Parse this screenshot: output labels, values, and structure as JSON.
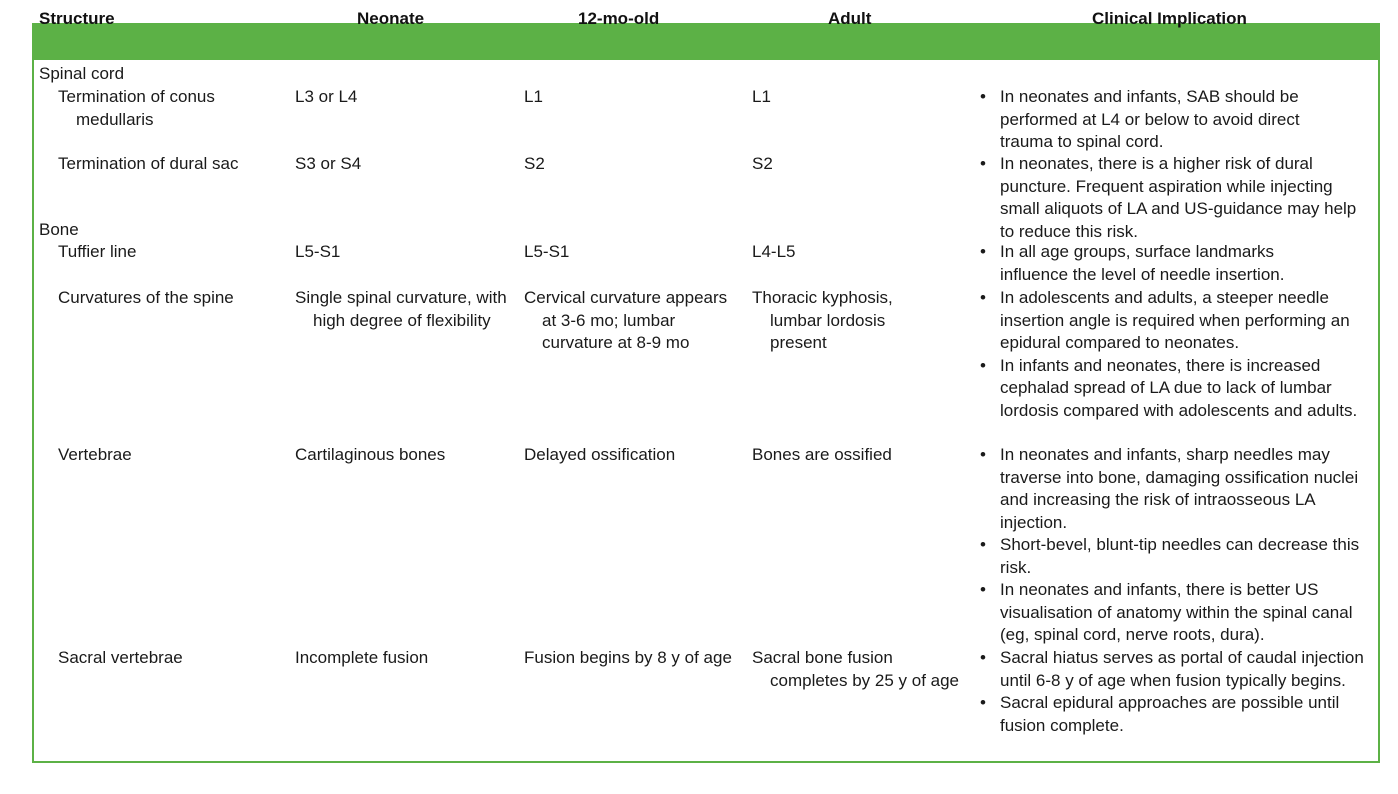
{
  "header": {
    "structure": "Structure",
    "neonate": "Neonate",
    "twelve_mo": "12-mo-old",
    "adult": "Adult",
    "clinical": "Clinical Implication"
  },
  "sections": {
    "spinal_cord": "Spinal cord",
    "bone": "Bone"
  },
  "rows": {
    "conus": {
      "structure": "Termination of conus medullaris",
      "neonate": "L3 or L4",
      "twelve_mo": "L1",
      "adult": "L1",
      "implications": [
        "In neonates and infants, SAB should be performed at L4 or below to avoid direct trauma to spinal cord."
      ]
    },
    "dural": {
      "structure": "Termination of dural sac",
      "neonate": "S3 or S4",
      "twelve_mo": "S2",
      "adult": "S2",
      "implications": [
        "In neonates, there is a higher risk of dural puncture. Frequent aspiration while injecting small aliquots of LA and US-guidance may help to reduce this risk."
      ]
    },
    "tuffier": {
      "structure": "Tuffier line",
      "neonate": "L5-S1",
      "twelve_mo": "L5-S1",
      "adult": "L4-L5",
      "implications": [
        "In all age groups, surface landmarks influence the level of needle insertion."
      ]
    },
    "curvatures": {
      "structure": "Curvatures of the spine",
      "neonate": "Single spinal curvature, with high degree of flexibility",
      "twelve_mo": "Cervical curvature appears at 3-6 mo; lumbar curvature at 8-9 mo",
      "adult": "Thoracic kyphosis, lumbar lordosis present",
      "implications": [
        "In adolescents and adults, a steeper needle insertion angle is required when performing an epidural compared to neonates.",
        "In infants and neonates, there is increased cephalad spread of LA due to lack of lumbar lordosis compared with adolescents and adults."
      ]
    },
    "vertebrae": {
      "structure": "Vertebrae",
      "neonate": "Cartilaginous bones",
      "twelve_mo": "Delayed ossification",
      "adult": "Bones are ossified",
      "implications": [
        "In neonates and infants, sharp needles may traverse into bone, damaging ossification nuclei and increasing the risk of intraosseous LA injection.",
        "Short-bevel, blunt-tip needles can decrease this risk.",
        "In neonates and infants, there is better US visualisation of anatomy within the spinal canal (eg, spinal cord, nerve roots, dura)."
      ]
    },
    "sacral": {
      "structure": "Sacral vertebrae",
      "neonate": "Incomplete fusion",
      "twelve_mo": "Fusion begins by 8 y of age",
      "adult": "Sacral bone fusion completes by 25 y of age",
      "implications": [
        "Sacral hiatus serves as portal of caudal injection until 6-8 y of age when fusion typically begins.",
        "Sacral epidural approaches are possible until fusion complete."
      ]
    }
  },
  "colors": {
    "header_green": "#5cb146",
    "text": "#1a1a1a"
  }
}
